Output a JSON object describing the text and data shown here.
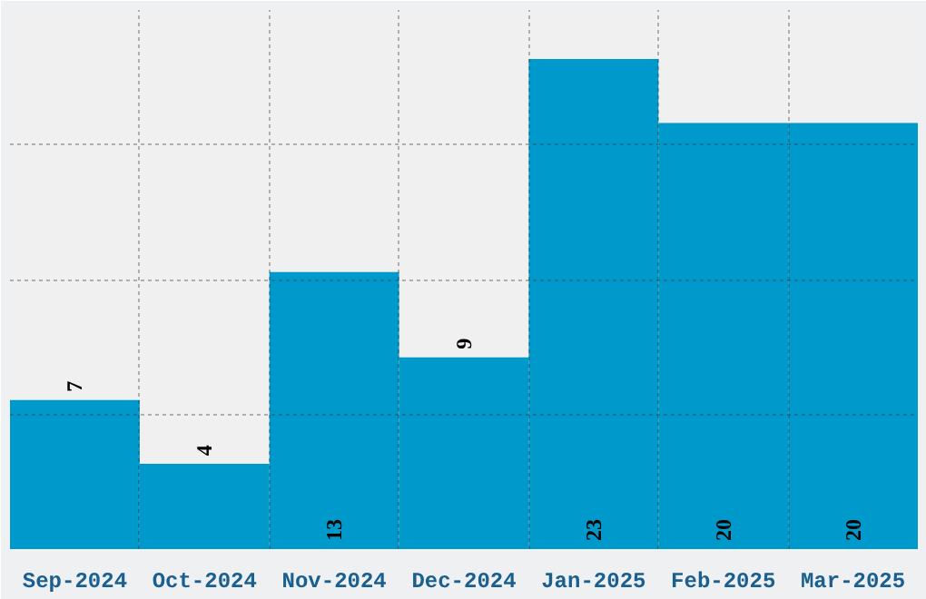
{
  "chart_data": {
    "type": "bar",
    "categories": [
      "Sep-2024",
      "Oct-2024",
      "Nov-2024",
      "Dec-2024",
      "Jan-2025",
      "Feb-2025",
      "Mar-2025"
    ],
    "values": [
      7,
      4,
      13,
      9,
      23,
      20,
      20
    ],
    "color": "#0099cc",
    "ylim": [
      0,
      25.3
    ],
    "yticks": [
      {
        "value": 6.325,
        "label": null
      },
      {
        "value": 12.65,
        "label": null
      },
      {
        "value": 18.975,
        "label": null
      }
    ],
    "grid": true,
    "data_labels": true,
    "tick_labels": "x"
  }
}
